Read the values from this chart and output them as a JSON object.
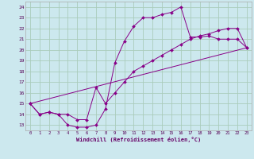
{
  "xlabel": "Windchill (Refroidissement éolien,°C)",
  "bg_color": "#cce8ee",
  "grid_color": "#aaccbb",
  "line_color": "#880088",
  "xlim": [
    -0.5,
    23.5
  ],
  "ylim": [
    12.5,
    24.5
  ],
  "yticks": [
    13,
    14,
    15,
    16,
    17,
    18,
    19,
    20,
    21,
    22,
    23,
    24
  ],
  "xticks": [
    0,
    1,
    2,
    3,
    4,
    5,
    6,
    7,
    8,
    9,
    10,
    11,
    12,
    13,
    14,
    15,
    16,
    17,
    18,
    19,
    20,
    21,
    22,
    23
  ],
  "curve1_x": [
    0,
    1,
    2,
    3,
    4,
    5,
    6,
    7,
    8,
    9,
    10,
    11,
    12,
    13,
    14,
    15,
    16,
    17,
    18,
    19,
    20,
    21,
    22,
    23
  ],
  "curve1_y": [
    15.0,
    14.0,
    14.2,
    14.0,
    13.0,
    12.8,
    12.8,
    13.0,
    14.5,
    18.8,
    20.8,
    22.2,
    23.0,
    23.0,
    23.3,
    23.5,
    24.0,
    21.2,
    21.2,
    21.3,
    21.0,
    21.0,
    21.0,
    20.2
  ],
  "curve2_x": [
    0,
    1,
    2,
    3,
    4,
    5,
    6,
    7,
    8,
    9,
    10,
    11,
    12,
    13,
    14,
    15,
    16,
    17,
    18,
    19,
    20,
    21,
    22,
    23
  ],
  "curve2_y": [
    15.0,
    14.0,
    14.2,
    14.0,
    14.0,
    13.5,
    13.5,
    16.5,
    15.0,
    16.0,
    17.0,
    18.0,
    18.5,
    19.0,
    19.5,
    20.0,
    20.5,
    21.0,
    21.3,
    21.5,
    21.8,
    22.0,
    22.0,
    20.2
  ],
  "curve3_x": [
    0,
    23
  ],
  "curve3_y": [
    15.0,
    20.2
  ]
}
